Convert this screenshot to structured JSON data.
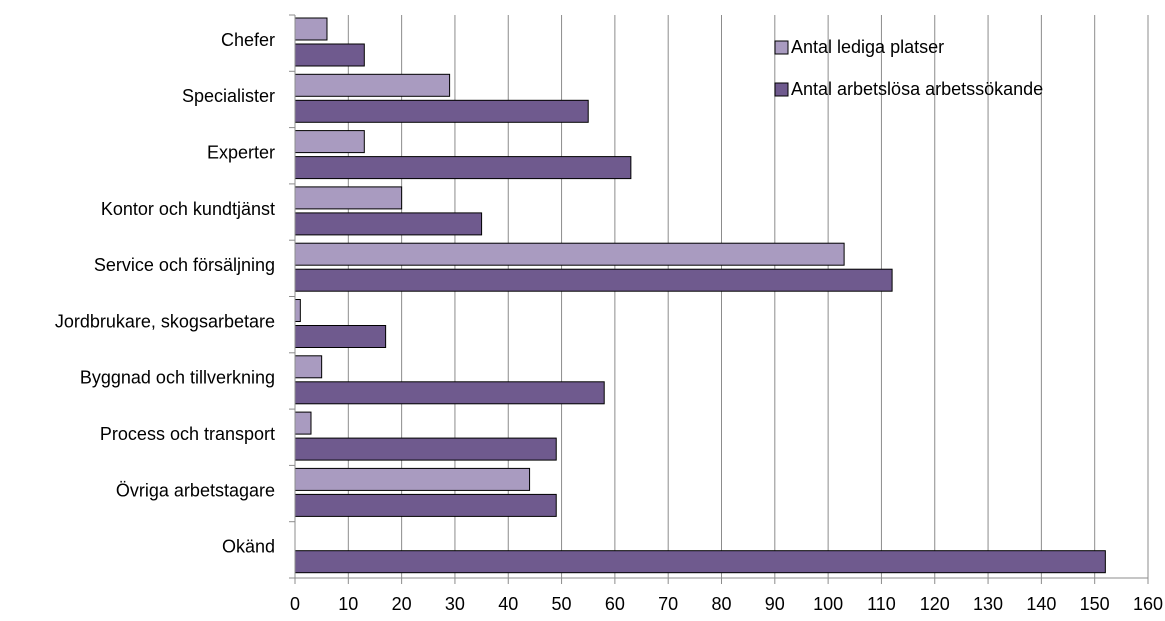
{
  "chart_data": {
    "type": "bar",
    "orientation": "horizontal",
    "categories": [
      "Chefer",
      "Specialister",
      "Experter",
      "Kontor och kundtjänst",
      "Service och försäljning",
      "Jordbrukare, skogsarbetare",
      "Byggnad och tillverkning",
      "Process och transport",
      "Övriga arbetstagare",
      "Okänd"
    ],
    "series": [
      {
        "name": "Antal lediga platser",
        "color": "#a99bc0",
        "values": [
          6,
          29,
          13,
          20,
          103,
          1,
          5,
          3,
          44,
          0
        ]
      },
      {
        "name": "Antal arbetslösa arbetssökande",
        "color": "#6f5a8e",
        "values": [
          13,
          55,
          63,
          35,
          112,
          17,
          58,
          49,
          49,
          152
        ]
      }
    ],
    "xlim": [
      0,
      160
    ],
    "xticks": [
      "0",
      "10",
      "20",
      "30",
      "40",
      "50",
      "60",
      "70",
      "80",
      "90",
      "100",
      "110",
      "120",
      "130",
      "140",
      "150",
      "160"
    ],
    "grid": "vertical",
    "legend_position": "top-right"
  }
}
